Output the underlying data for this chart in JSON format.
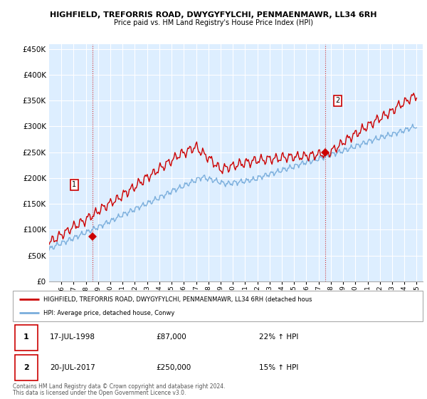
{
  "title1": "HIGHFIELD, TREFORRIS ROAD, DWYGYFYLCHI, PENMAENMAWR, LL34 6RH",
  "title2": "Price paid vs. HM Land Registry's House Price Index (HPI)",
  "ylabel_ticks": [
    "£0",
    "£50K",
    "£100K",
    "£150K",
    "£200K",
    "£250K",
    "£300K",
    "£350K",
    "£400K",
    "£450K"
  ],
  "ylabel_values": [
    0,
    50000,
    100000,
    150000,
    200000,
    250000,
    300000,
    350000,
    400000,
    450000
  ],
  "ylim": [
    0,
    460000
  ],
  "xlim_start": 1995.0,
  "xlim_end": 2025.5,
  "legend_line1": "HIGHFIELD, TREFORRIS ROAD, DWYGYFYLCHI, PENMAENMAWR, LL34 6RH (detached hous",
  "legend_line2": "HPI: Average price, detached house, Conwy",
  "transaction1_date": "17-JUL-1998",
  "transaction1_price": 87000,
  "transaction1_hpi": "22% ↑ HPI",
  "transaction1_year": 1998.54,
  "transaction2_date": "20-JUL-2017",
  "transaction2_price": 250000,
  "transaction2_hpi": "15% ↑ HPI",
  "transaction2_year": 2017.54,
  "footer1": "Contains HM Land Registry data © Crown copyright and database right 2024.",
  "footer2": "This data is licensed under the Open Government Licence v3.0.",
  "line_color_red": "#cc0000",
  "line_color_blue": "#7aaedc",
  "plot_bg_color": "#ddeeff",
  "background_color": "#ffffff",
  "grid_color": "#ffffff",
  "annotation_box_color": "#cc0000"
}
